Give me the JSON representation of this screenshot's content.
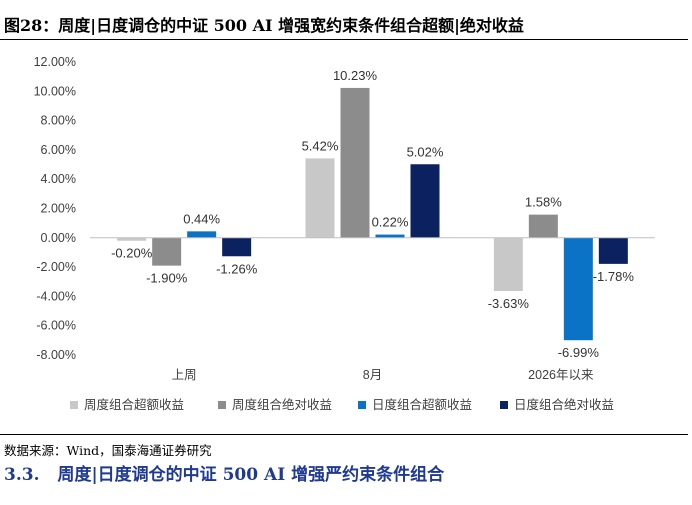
{
  "page": {
    "top_cut_text": "",
    "figure_title": "图28：周度|日度调仓的中证 500 AI 增强宽约束条件组合超额|绝对收益",
    "source": "数据来源：Wind，国泰海通证券研究",
    "section_number": "3.3.",
    "section_title": "周度|日度调仓的中证 500 AI 增强严约束条件组合",
    "bottom_cut_text": ""
  },
  "chart_data": {
    "type": "bar",
    "categories": [
      "上周",
      "8月",
      "2026年以来"
    ],
    "series": [
      {
        "name": "周度组合超额收益",
        "color": "#c8c8c8",
        "values": [
          -0.2,
          5.42,
          -3.63
        ],
        "labels": [
          "-0.20%",
          "5.42%",
          "-3.63%"
        ]
      },
      {
        "name": "周度组合绝对收益",
        "color": "#8c8c8c",
        "values": [
          -1.9,
          10.23,
          1.58
        ],
        "labels": [
          "-1.90%",
          "10.23%",
          "1.58%"
        ]
      },
      {
        "name": "日度组合超额收益",
        "color": "#0a73c6",
        "values": [
          0.44,
          0.22,
          -6.99
        ],
        "labels": [
          "0.44%",
          "0.22%",
          "-6.99%"
        ]
      },
      {
        "name": "日度组合绝对收益",
        "color": "#0c2260",
        "values": [
          -1.26,
          5.02,
          -1.78
        ],
        "labels": [
          "-1.26%",
          "5.02%",
          "-1.78%"
        ]
      }
    ],
    "yticks": [
      "12.00%",
      "10.00%",
      "8.00%",
      "6.00%",
      "4.00%",
      "2.00%",
      "0.00%",
      "-2.00%",
      "-4.00%",
      "-6.00%",
      "-8.00%"
    ],
    "ylim": [
      -8,
      12
    ],
    "grid": false,
    "legend_position": "bottom",
    "xlabel": "",
    "ylabel": "",
    "title": ""
  }
}
